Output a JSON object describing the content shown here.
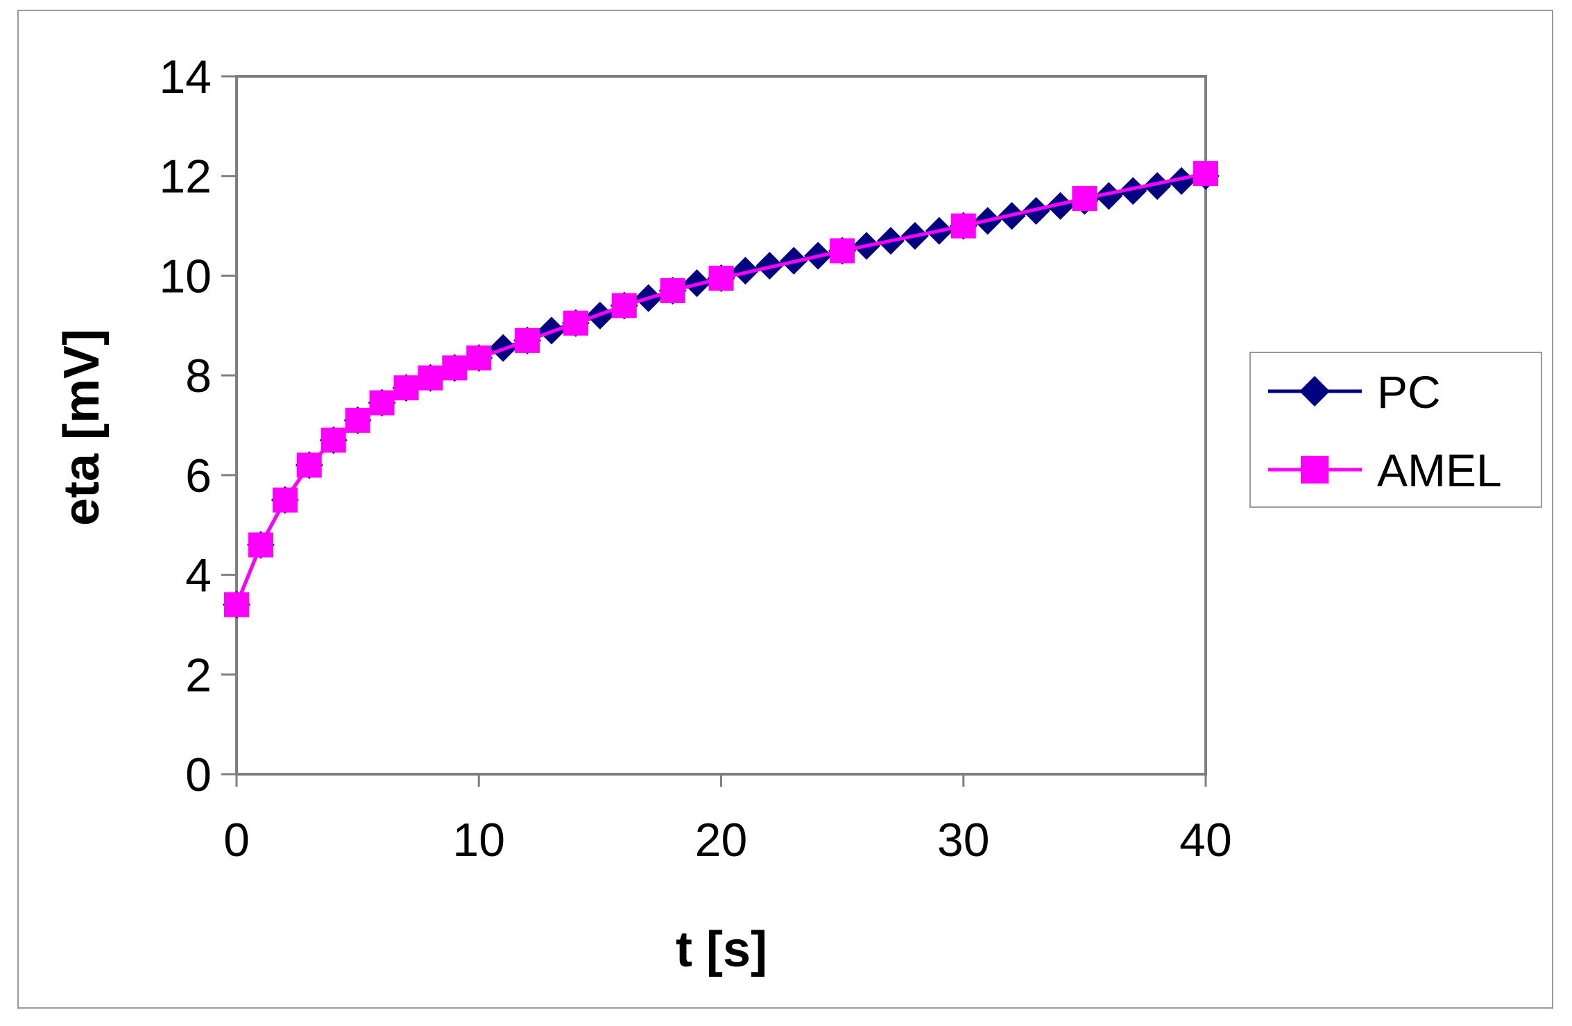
{
  "chart_data": {
    "type": "line",
    "title": "",
    "xlabel": "t [s]",
    "ylabel": "eta [mV]",
    "xlim": [
      0,
      40
    ],
    "ylim": [
      0,
      14
    ],
    "xticks": [
      "0",
      "10",
      "20",
      "30",
      "40"
    ],
    "yticks": [
      "0",
      "2",
      "4",
      "6",
      "8",
      "10",
      "12",
      "14"
    ],
    "grid": false,
    "legend_position": "right",
    "series": [
      {
        "name": "PC",
        "color": "#000080",
        "marker": "diamond",
        "x": [
          0,
          1,
          2,
          3,
          4,
          5,
          6,
          7,
          8,
          9,
          10,
          11,
          12,
          13,
          14,
          15,
          16,
          17,
          18,
          19,
          20,
          21,
          22,
          23,
          24,
          25,
          26,
          27,
          28,
          29,
          30,
          31,
          32,
          33,
          34,
          35,
          36,
          37,
          38,
          39,
          40
        ],
        "values": [
          3.4,
          4.6,
          5.5,
          6.2,
          6.7,
          7.1,
          7.45,
          7.75,
          7.95,
          8.15,
          8.35,
          8.55,
          8.7,
          8.9,
          9.05,
          9.2,
          9.4,
          9.55,
          9.7,
          9.85,
          9.95,
          10.1,
          10.2,
          10.3,
          10.4,
          10.5,
          10.6,
          10.7,
          10.8,
          10.9,
          11.0,
          11.1,
          11.2,
          11.3,
          11.4,
          11.5,
          11.6,
          11.7,
          11.8,
          11.9,
          12.0
        ]
      },
      {
        "name": "AMEL",
        "color": "#ff00ff",
        "marker": "square",
        "x": [
          0,
          1,
          2,
          3,
          4,
          5,
          6,
          7,
          8,
          9,
          10,
          12,
          14,
          16,
          18,
          20,
          25,
          30,
          35,
          40
        ],
        "values": [
          3.4,
          4.6,
          5.5,
          6.2,
          6.7,
          7.1,
          7.45,
          7.75,
          7.95,
          8.15,
          8.35,
          8.7,
          9.05,
          9.4,
          9.7,
          9.95,
          10.5,
          11.0,
          11.55,
          12.05
        ]
      }
    ]
  }
}
